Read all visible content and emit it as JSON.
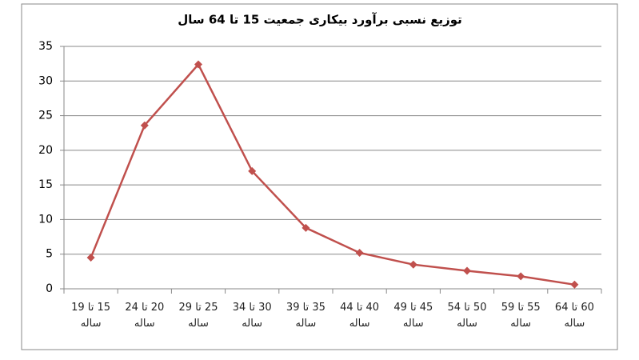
{
  "chart_data": {
    "type": "line",
    "title": "توزیع نسبی برآورد بیکاری جمعیت 15 تا 64 سال",
    "categories": [
      "15 تا 19 ساله",
      "20 تا 24 ساله",
      "25 تا 29 ساله",
      "30 تا 34 ساله",
      "35 تا 39 ساله",
      "40 تا 44 ساله",
      "45 تا 49 ساله",
      "50 تا 54 ساله",
      "55 تا 59 ساله",
      "60 تا 64 ساله"
    ],
    "series": [
      {
        "color": "#c0504d",
        "values": [
          4.5,
          23.6,
          32.4,
          17,
          8.8,
          5.2,
          3.5,
          2.6,
          1.8,
          0.6
        ]
      }
    ],
    "ylim": [
      0,
      35
    ],
    "yticks": [
      0,
      5,
      10,
      15,
      20,
      25,
      30,
      35
    ],
    "grid": true
  }
}
